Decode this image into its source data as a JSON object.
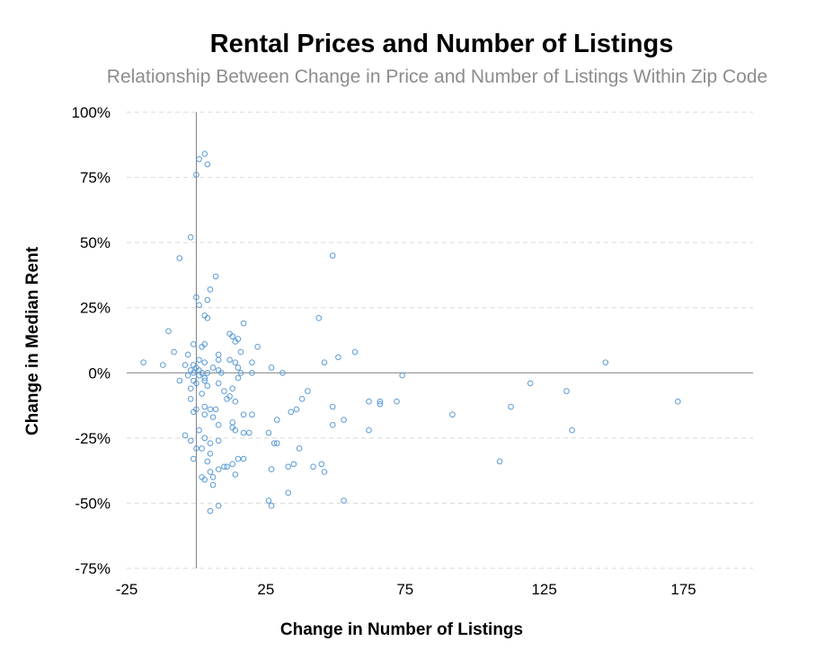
{
  "chart_data": {
    "type": "scatter",
    "title": "Rental Prices and Number of Listings",
    "subtitle": "Relationship Between Change in Price and Number of Listings Within Zip Code",
    "xlabel": "Change in Number of Listings",
    "ylabel": "Change in Median Rent",
    "xlim": [
      -25,
      200
    ],
    "ylim": [
      -75,
      100
    ],
    "x_ticks": [
      -25,
      25,
      75,
      125,
      175
    ],
    "x_tick_labels": [
      "-25",
      "25",
      "75",
      "125",
      "175"
    ],
    "y_ticks": [
      100,
      75,
      50,
      25,
      0,
      -25,
      -50,
      -75
    ],
    "y_tick_labels": [
      "100%",
      "75%",
      "50%",
      "25%",
      "0%",
      "-25%",
      "-50%",
      "-75%"
    ],
    "grid": "horizontal-dashed",
    "legend": "none",
    "colors": {
      "marker": "#5b9bd5",
      "axis": "#7f7f7f",
      "grid": "#d9d9d9"
    },
    "points": [
      [
        1,
        82
      ],
      [
        3,
        84
      ],
      [
        4,
        80
      ],
      [
        0,
        76
      ],
      [
        -2,
        52
      ],
      [
        -6,
        44
      ],
      [
        7,
        37
      ],
      [
        49,
        45
      ],
      [
        5,
        32
      ],
      [
        0,
        29
      ],
      [
        4,
        28
      ],
      [
        1,
        26
      ],
      [
        3,
        22
      ],
      [
        4,
        21
      ],
      [
        44,
        21
      ],
      [
        17,
        19
      ],
      [
        -10,
        16
      ],
      [
        12,
        15
      ],
      [
        13,
        14
      ],
      [
        15,
        13
      ],
      [
        14,
        12
      ],
      [
        -1,
        11
      ],
      [
        2,
        10
      ],
      [
        3,
        11
      ],
      [
        22,
        10
      ],
      [
        -8,
        8
      ],
      [
        -3,
        7
      ],
      [
        16,
        8
      ],
      [
        57,
        8
      ],
      [
        8,
        7
      ],
      [
        51,
        6
      ],
      [
        1,
        5
      ],
      [
        3,
        4
      ],
      [
        8,
        5
      ],
      [
        12,
        5
      ],
      [
        -19,
        4
      ],
      [
        -4,
        3
      ],
      [
        -1,
        3
      ],
      [
        14,
        4
      ],
      [
        20,
        4
      ],
      [
        46,
        4
      ],
      [
        147,
        4
      ],
      [
        -12,
        3
      ],
      [
        0,
        2
      ],
      [
        6,
        2
      ],
      [
        15,
        2
      ],
      [
        27,
        2
      ],
      [
        -2,
        1
      ],
      [
        1,
        1
      ],
      [
        4,
        0
      ],
      [
        8,
        1
      ],
      [
        -1,
        0
      ],
      [
        2,
        0
      ],
      [
        9,
        0
      ],
      [
        16,
        0
      ],
      [
        20,
        0
      ],
      [
        31,
        0
      ],
      [
        -3,
        -1
      ],
      [
        1,
        -1
      ],
      [
        15,
        -2
      ],
      [
        74,
        -1
      ],
      [
        -6,
        -3
      ],
      [
        -1,
        -3
      ],
      [
        3,
        -2
      ],
      [
        3,
        -3
      ],
      [
        0,
        -4
      ],
      [
        -2,
        -6
      ],
      [
        4,
        -5
      ],
      [
        8,
        -4
      ],
      [
        13,
        -6
      ],
      [
        40,
        -7
      ],
      [
        2,
        -8
      ],
      [
        10,
        -7
      ],
      [
        12,
        -9
      ],
      [
        120,
        -4
      ],
      [
        133,
        -7
      ],
      [
        -2,
        -10
      ],
      [
        3,
        -13
      ],
      [
        11,
        -10
      ],
      [
        14,
        -11
      ],
      [
        38,
        -10
      ],
      [
        62,
        -11
      ],
      [
        66,
        -11
      ],
      [
        66,
        -12
      ],
      [
        72,
        -11
      ],
      [
        173,
        -11
      ],
      [
        0,
        -14
      ],
      [
        5,
        -14
      ],
      [
        7,
        -14
      ],
      [
        36,
        -14
      ],
      [
        34,
        -15
      ],
      [
        49,
        -13
      ],
      [
        113,
        -13
      ],
      [
        -1,
        -15
      ],
      [
        3,
        -16
      ],
      [
        6,
        -17
      ],
      [
        17,
        -16
      ],
      [
        20,
        -16
      ],
      [
        92,
        -16
      ],
      [
        13,
        -19
      ],
      [
        29,
        -18
      ],
      [
        53,
        -18
      ],
      [
        8,
        -20
      ],
      [
        13,
        -21
      ],
      [
        49,
        -20
      ],
      [
        1,
        -22
      ],
      [
        14,
        -22
      ],
      [
        17,
        -23
      ],
      [
        19,
        -23
      ],
      [
        62,
        -22
      ],
      [
        135,
        -22
      ],
      [
        -4,
        -24
      ],
      [
        -2,
        -26
      ],
      [
        3,
        -25
      ],
      [
        26,
        -23
      ],
      [
        8,
        -26
      ],
      [
        5,
        -27
      ],
      [
        28,
        -27
      ],
      [
        29,
        -27
      ],
      [
        0,
        -29
      ],
      [
        2,
        -29
      ],
      [
        37,
        -29
      ],
      [
        5,
        -31
      ],
      [
        -1,
        -33
      ],
      [
        15,
        -33
      ],
      [
        17,
        -33
      ],
      [
        109,
        -34
      ],
      [
        4,
        -34
      ],
      [
        13,
        -35
      ],
      [
        10,
        -36
      ],
      [
        11,
        -36
      ],
      [
        35,
        -35
      ],
      [
        42,
        -36
      ],
      [
        45,
        -35
      ],
      [
        8,
        -37
      ],
      [
        33,
        -36
      ],
      [
        27,
        -37
      ],
      [
        2,
        -40
      ],
      [
        5,
        -38
      ],
      [
        14,
        -39
      ],
      [
        6,
        -40
      ],
      [
        3,
        -41
      ],
      [
        46,
        -38
      ],
      [
        6,
        -43
      ],
      [
        33,
        -46
      ],
      [
        26,
        -49
      ],
      [
        53,
        -49
      ],
      [
        27,
        -51
      ],
      [
        8,
        -51
      ],
      [
        5,
        -53
      ]
    ]
  }
}
